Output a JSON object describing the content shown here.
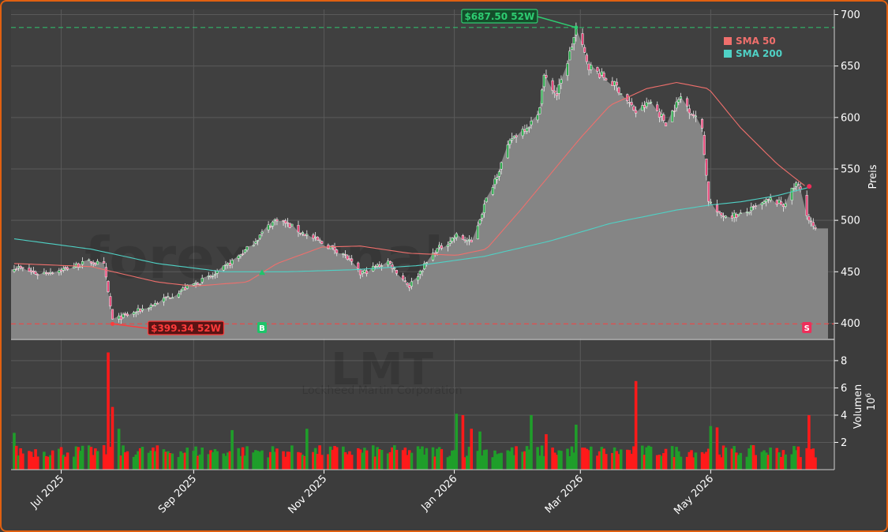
{
  "chart_data": {
    "type": "candlestick",
    "ticker": "LMT",
    "company": "Lockheed Martin Corporation",
    "watermark": "forexsignale.trade",
    "ylabel_price": "Preis",
    "ylabel_volume": "Volumen",
    "volume_unit": "10^6",
    "price_ylim": [
      385,
      705
    ],
    "price_ticks": [
      "400",
      "450",
      "500",
      "550",
      "600",
      "650",
      "700"
    ],
    "volume_ylim": [
      0,
      9.5
    ],
    "volume_ticks": [
      "2",
      "4",
      "6",
      "8"
    ],
    "x_start": "2025-06-09",
    "x_end": "2026-06-19",
    "x_ticks": [
      {
        "date": "2025-07-01",
        "label": "Jul 2025"
      },
      {
        "date": "2025-09-01",
        "label": "Sep 2025"
      },
      {
        "date": "2025-11-01",
        "label": "Nov 2025"
      },
      {
        "date": "2026-01-01",
        "label": "Jan 2026"
      },
      {
        "date": "2026-03-01",
        "label": "Mar 2026"
      },
      {
        "date": "2026-05-01",
        "label": "May 2026"
      }
    ],
    "legend": [
      {
        "name": "SMA 50",
        "color": "#ef6f6c"
      },
      {
        "name": "SMA 200",
        "color": "#4fd1c5"
      }
    ],
    "high_52w": {
      "value": 687.5,
      "label": "$687.50 52W",
      "date": "2026-02-27",
      "color": "#2ecc71"
    },
    "low_52w": {
      "value": 399.34,
      "label": "$399.34 52W",
      "date": "2025-07-25",
      "color": "#ff3b3b"
    },
    "signals": [
      {
        "type": "buy",
        "label": "B",
        "date": "2025-10-03",
        "price": 450
      },
      {
        "type": "sell",
        "label": "S",
        "date": "2026-06-15",
        "price": 533
      }
    ],
    "close_anchors": [
      [
        "2025-06-09",
        455
      ],
      [
        "2025-06-20",
        448
      ],
      [
        "2025-07-01",
        452
      ],
      [
        "2025-07-15",
        460
      ],
      [
        "2025-07-21",
        456
      ],
      [
        "2025-07-25",
        403
      ],
      [
        "2025-08-04",
        410
      ],
      [
        "2025-08-15",
        420
      ],
      [
        "2025-08-29",
        435
      ],
      [
        "2025-09-12",
        448
      ],
      [
        "2025-09-26",
        472
      ],
      [
        "2025-10-06",
        494
      ],
      [
        "2025-10-10",
        502
      ],
      [
        "2025-10-20",
        490
      ],
      [
        "2025-10-31",
        478
      ],
      [
        "2025-11-10",
        468
      ],
      [
        "2025-11-18",
        448
      ],
      [
        "2025-12-01",
        460
      ],
      [
        "2025-12-11",
        436
      ],
      [
        "2025-12-23",
        470
      ],
      [
        "2026-01-02",
        485
      ],
      [
        "2026-01-09",
        478
      ],
      [
        "2026-01-16",
        520
      ],
      [
        "2026-01-28",
        580
      ],
      [
        "2026-02-09",
        600
      ],
      [
        "2026-02-12",
        640
      ],
      [
        "2026-02-18",
        622
      ],
      [
        "2026-02-23",
        655
      ],
      [
        "2026-02-27",
        685
      ],
      [
        "2026-03-05",
        650
      ],
      [
        "2026-03-18",
        630
      ],
      [
        "2026-03-27",
        605
      ],
      [
        "2026-04-03",
        615
      ],
      [
        "2026-04-10",
        595
      ],
      [
        "2026-04-17",
        620
      ],
      [
        "2026-04-27",
        590
      ],
      [
        "2026-04-30",
        520
      ],
      [
        "2026-05-05",
        505
      ],
      [
        "2026-05-15",
        505
      ],
      [
        "2026-05-29",
        520
      ],
      [
        "2026-06-04",
        515
      ],
      [
        "2026-06-10",
        535
      ],
      [
        "2026-06-12",
        530
      ],
      [
        "2026-06-16",
        500
      ],
      [
        "2026-06-19",
        490
      ]
    ],
    "sma50_anchors": [
      [
        "2025-06-09",
        458
      ],
      [
        "2025-07-15",
        455
      ],
      [
        "2025-08-15",
        440
      ],
      [
        "2025-09-01",
        436
      ],
      [
        "2025-09-26",
        440
      ],
      [
        "2025-10-10",
        458
      ],
      [
        "2025-10-31",
        474
      ],
      [
        "2025-11-18",
        475
      ],
      [
        "2025-12-11",
        468
      ],
      [
        "2026-01-02",
        466
      ],
      [
        "2026-01-16",
        472
      ],
      [
        "2026-02-01",
        510
      ],
      [
        "2026-02-15",
        545
      ],
      [
        "2026-03-01",
        580
      ],
      [
        "2026-03-15",
        612
      ],
      [
        "2026-04-01",
        628
      ],
      [
        "2026-04-15",
        634
      ],
      [
        "2026-04-30",
        628
      ],
      [
        "2026-05-15",
        590
      ],
      [
        "2026-06-01",
        555
      ],
      [
        "2026-06-15",
        532
      ]
    ],
    "sma200_anchors": [
      [
        "2025-06-09",
        482
      ],
      [
        "2025-07-15",
        472
      ],
      [
        "2025-08-15",
        458
      ],
      [
        "2025-09-15",
        450
      ],
      [
        "2025-10-15",
        450
      ],
      [
        "2025-11-15",
        452
      ],
      [
        "2025-12-15",
        456
      ],
      [
        "2026-01-15",
        465
      ],
      [
        "2026-02-15",
        480
      ],
      [
        "2026-03-15",
        497
      ],
      [
        "2026-04-15",
        510
      ],
      [
        "2026-05-01",
        515
      ],
      [
        "2026-05-15",
        518
      ],
      [
        "2026-06-01",
        524
      ],
      [
        "2026-06-16",
        532
      ]
    ],
    "volume_spikes": [
      [
        "2025-06-09",
        2.7
      ],
      [
        "2025-07-23",
        8.6
      ],
      [
        "2025-07-25",
        4.6
      ],
      [
        "2025-07-28",
        3.0
      ],
      [
        "2025-09-19",
        2.9
      ],
      [
        "2025-10-24",
        3.0
      ],
      [
        "2026-01-02",
        4.1
      ],
      [
        "2026-01-05",
        4.0
      ],
      [
        "2026-01-09",
        3.0
      ],
      [
        "2026-01-13",
        2.8
      ],
      [
        "2026-02-06",
        4.0
      ],
      [
        "2026-02-13",
        2.6
      ],
      [
        "2026-02-27",
        3.3
      ],
      [
        "2026-03-27",
        6.5
      ],
      [
        "2026-05-01",
        3.2
      ],
      [
        "2026-05-04",
        3.1
      ],
      [
        "2026-06-16",
        4.0
      ]
    ]
  }
}
